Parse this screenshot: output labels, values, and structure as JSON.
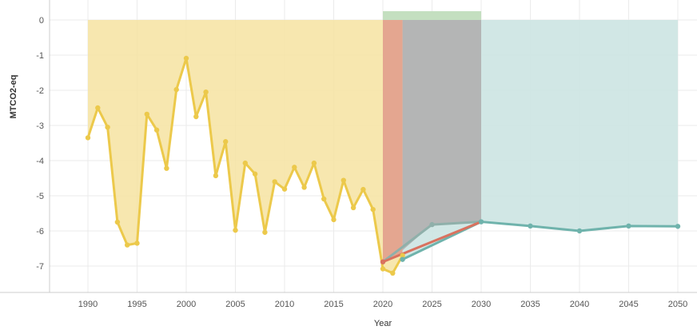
{
  "chart_data": {
    "type": "area",
    "xlabel": "Year",
    "ylabel": "MTCO2-eq",
    "xlim": [
      1985,
      2052
    ],
    "ylim": [
      -7.8,
      0.25
    ],
    "x_ticks": [
      1990,
      1995,
      2000,
      2005,
      2010,
      2015,
      2020,
      2025,
      2030,
      2035,
      2040,
      2045,
      2050
    ],
    "y_ticks": [
      0,
      -1,
      -2,
      -3,
      -4,
      -5,
      -6,
      -7
    ],
    "grid": true,
    "colors": {
      "historical": "#ecc94b",
      "historical_fill": "#f6e3a1",
      "red_line": "#d9725f",
      "red_fill": "#e3a28e",
      "gray_line": "#8fb0aa",
      "gray_fill": "#b2b2b2",
      "green_fill": "#c4dfc0",
      "teal": "#6fb3ac",
      "teal_fill": "#cfe6e4"
    },
    "series": [
      {
        "x": [
          1990,
          1991,
          1992,
          1993,
          1994,
          1995,
          1996,
          1997,
          1998,
          1999,
          2000,
          2001,
          2002,
          2003,
          2004,
          2005,
          2006,
          2007,
          2008,
          2009,
          2010,
          2011,
          2012,
          2013,
          2014,
          2015,
          2016,
          2017,
          2018,
          2019,
          2020,
          2021,
          2022
        ],
        "values": [
          -3.35,
          -2.5,
          -3.05,
          -5.75,
          -6.4,
          -6.35,
          -2.68,
          -3.13,
          -4.22,
          -1.98,
          -1.09,
          -2.75,
          -2.05,
          -4.43,
          -3.46,
          -5.98,
          -4.07,
          -4.38,
          -6.04,
          -4.6,
          -4.81,
          -4.19,
          -4.76,
          -4.07,
          -5.09,
          -5.68,
          -4.56,
          -5.34,
          -4.82,
          -5.39,
          -7.08,
          -7.2,
          -6.7
        ]
      },
      {
        "x": [
          2020,
          2030
        ],
        "values": [
          -6.88,
          -5.74
        ]
      },
      {
        "x": [
          2020,
          2025,
          2030
        ],
        "values": [
          -6.88,
          -5.82,
          -5.74
        ]
      },
      {
        "x": [
          2022,
          2030,
          2035,
          2040,
          2045,
          2050
        ],
        "values": [
          -6.81,
          -5.74,
          -5.86,
          -6.0,
          -5.86,
          -5.87
        ]
      }
    ],
    "bands": [
      {
        "x": [
          2020,
          2030
        ],
        "y": [
          0,
          0.25
        ]
      }
    ]
  }
}
